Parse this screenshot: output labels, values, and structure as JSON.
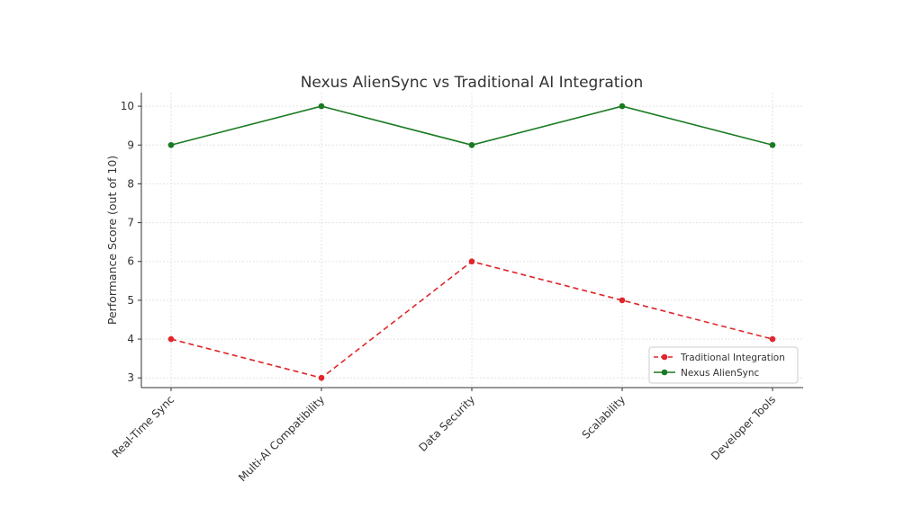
{
  "chart_data": {
    "type": "line",
    "title": "Nexus AlienSync vs Traditional AI Integration",
    "xlabel": "",
    "ylabel": "Performance Score (out of 10)",
    "categories": [
      "Real-Time Sync",
      "Multi-AI Compatibility",
      "Data Security",
      "Scalability",
      "Developer Tools"
    ],
    "ylim": [
      2.75,
      10.35
    ],
    "yticks": [
      3,
      4,
      5,
      6,
      7,
      8,
      9,
      10
    ],
    "grid": true,
    "legend_position": "lower-right",
    "series": [
      {
        "name": "Traditional Integration",
        "values": [
          4,
          3,
          6,
          5,
          4
        ],
        "color": "#e0262b",
        "line_style": "dashed",
        "marker": "circle"
      },
      {
        "name": "Nexus AlienSync",
        "values": [
          9,
          10,
          9,
          10,
          9
        ],
        "color": "#1a7a22",
        "line_style": "solid",
        "marker": "circle"
      }
    ]
  }
}
